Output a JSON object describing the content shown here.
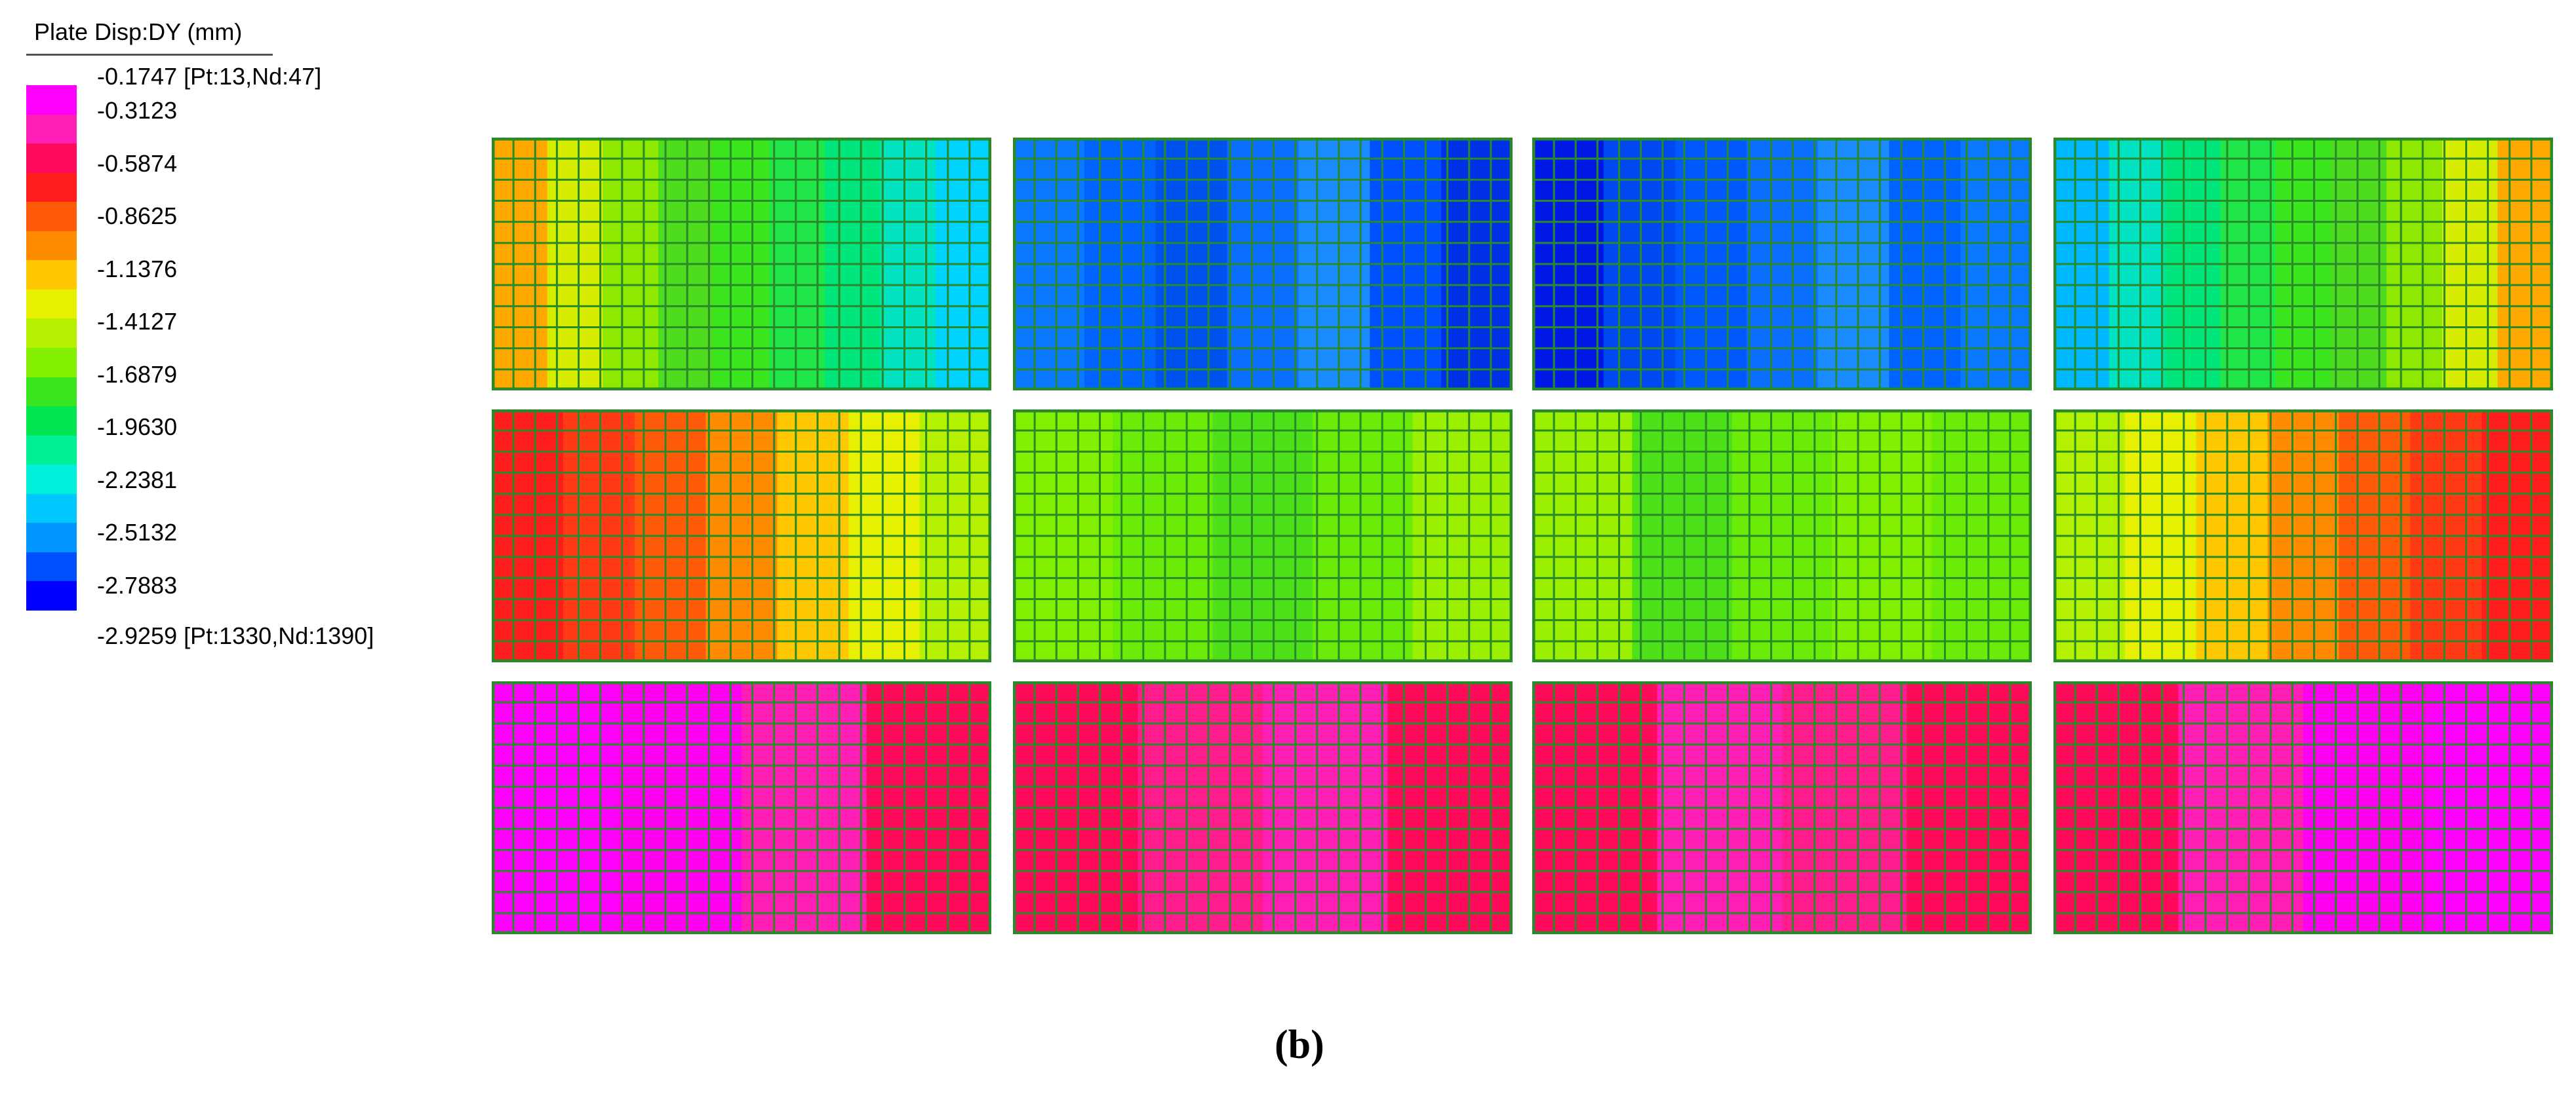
{
  "legend": {
    "title": "Plate Disp:DY  (mm)",
    "max_label": "-0.1747 [Pt:13,Nd:47]",
    "min_label": "-2.9259 [Pt:1330,Nd:1390]",
    "ticks": [
      "-0.3123",
      "-0.5874",
      "-0.8625",
      "-1.1376",
      "-1.4127",
      "-1.6879",
      "-1.9630",
      "-2.2381",
      "-2.5132",
      "-2.7883"
    ],
    "colors": [
      "#ff00ff",
      "#ff1fb4",
      "#ff0a5a",
      "#ff1c1c",
      "#ff5a0a",
      "#ff8c00",
      "#ffc800",
      "#e6f000",
      "#b4f000",
      "#82f000",
      "#3ce61e",
      "#00e650",
      "#00f096",
      "#00f0dc",
      "#00c8ff",
      "#0096ff",
      "#0050ff",
      "#0000ff"
    ]
  },
  "caption": "(b)",
  "mesh_line_color": "#2a8a2a",
  "panels": [
    {
      "id": "r1c1",
      "colors": [
        "#ffa800",
        "#d6ec00",
        "#8ee800",
        "#4ddc1e",
        "#3ce61e",
        "#20e64a",
        "#00e67c",
        "#00e2c0",
        "#00d2ff"
      ]
    },
    {
      "id": "r1c2",
      "colors": [
        "#0a78ff",
        "#0062ff",
        "#0052ee",
        "#0a6eff",
        "#1a8cff",
        "#0050ff",
        "#0030e6"
      ]
    },
    {
      "id": "r1c3",
      "colors": [
        "#0018e6",
        "#0048f0",
        "#0058ff",
        "#0a6eff",
        "#1a8cff",
        "#0062ff",
        "#0a78ff"
      ]
    },
    {
      "id": "r1c4",
      "colors": [
        "#00b8ff",
        "#00e2c0",
        "#00e67c",
        "#20e64a",
        "#3ce61e",
        "#4ddc1e",
        "#8ee800",
        "#d6ec00",
        "#ffa800"
      ]
    },
    {
      "id": "r2c1",
      "colors": [
        "#ff1c1c",
        "#ff3a14",
        "#ff5a0a",
        "#ff8c00",
        "#ffc800",
        "#e6f000",
        "#b4f000"
      ]
    },
    {
      "id": "r2c2",
      "colors": [
        "#82f000",
        "#6aec08",
        "#4ee018",
        "#6aec08",
        "#9af000"
      ]
    },
    {
      "id": "r2c3",
      "colors": [
        "#9af000",
        "#4ee018",
        "#6aec08",
        "#82f000",
        "#6aec08"
      ]
    },
    {
      "id": "r2c4",
      "colors": [
        "#b4f000",
        "#e6f000",
        "#ffc800",
        "#ff8c00",
        "#ff5a0a",
        "#ff3a14",
        "#ff1c1c"
      ]
    },
    {
      "id": "r3c1",
      "colors": [
        "#ff00ff",
        "#ff00f0",
        "#ff1fb4",
        "#ff0a5a"
      ]
    },
    {
      "id": "r3c2",
      "colors": [
        "#ff0a5a",
        "#ff1c8c",
        "#ff1fb4",
        "#ff0a5a"
      ]
    },
    {
      "id": "r3c3",
      "colors": [
        "#ff0a5a",
        "#ff1fb4",
        "#ff1c8c",
        "#ff0a5a"
      ]
    },
    {
      "id": "r3c4",
      "colors": [
        "#ff0a5a",
        "#ff1fb4",
        "#ff00f0",
        "#ff00ff"
      ]
    }
  ]
}
